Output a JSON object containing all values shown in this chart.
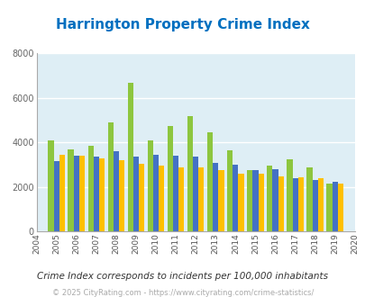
{
  "title": "Harrington Property Crime Index",
  "years_all": [
    2004,
    2005,
    2006,
    2007,
    2008,
    2009,
    2010,
    2011,
    2012,
    2013,
    2014,
    2015,
    2016,
    2017,
    2018,
    2019,
    2020
  ],
  "years_data": [
    2005,
    2006,
    2007,
    2008,
    2009,
    2010,
    2011,
    2012,
    2013,
    2014,
    2015,
    2016,
    2017,
    2018,
    2019
  ],
  "harrington": [
    4100,
    3700,
    3850,
    4900,
    6700,
    4100,
    4750,
    5200,
    4450,
    3650,
    2750,
    2950,
    3250,
    2900,
    2150
  ],
  "delaware": [
    3150,
    3400,
    3350,
    3600,
    3350,
    3450,
    3400,
    3350,
    3100,
    3000,
    2750,
    2800,
    2400,
    2300,
    2250
  ],
  "national": [
    3450,
    3400,
    3300,
    3200,
    3050,
    2950,
    2900,
    2900,
    2750,
    2600,
    2600,
    2500,
    2450,
    2400,
    2150
  ],
  "harrington_color": "#8dc63f",
  "delaware_color": "#4472c4",
  "national_color": "#ffc000",
  "bg_color": "#deeef5",
  "title_color": "#0070c0",
  "ylim": [
    0,
    8000
  ],
  "yticks": [
    0,
    2000,
    4000,
    6000,
    8000
  ],
  "subtitle": "Crime Index corresponds to incidents per 100,000 inhabitants",
  "footer": "© 2025 CityRating.com - https://www.cityrating.com/crime-statistics/",
  "bar_width": 0.28
}
